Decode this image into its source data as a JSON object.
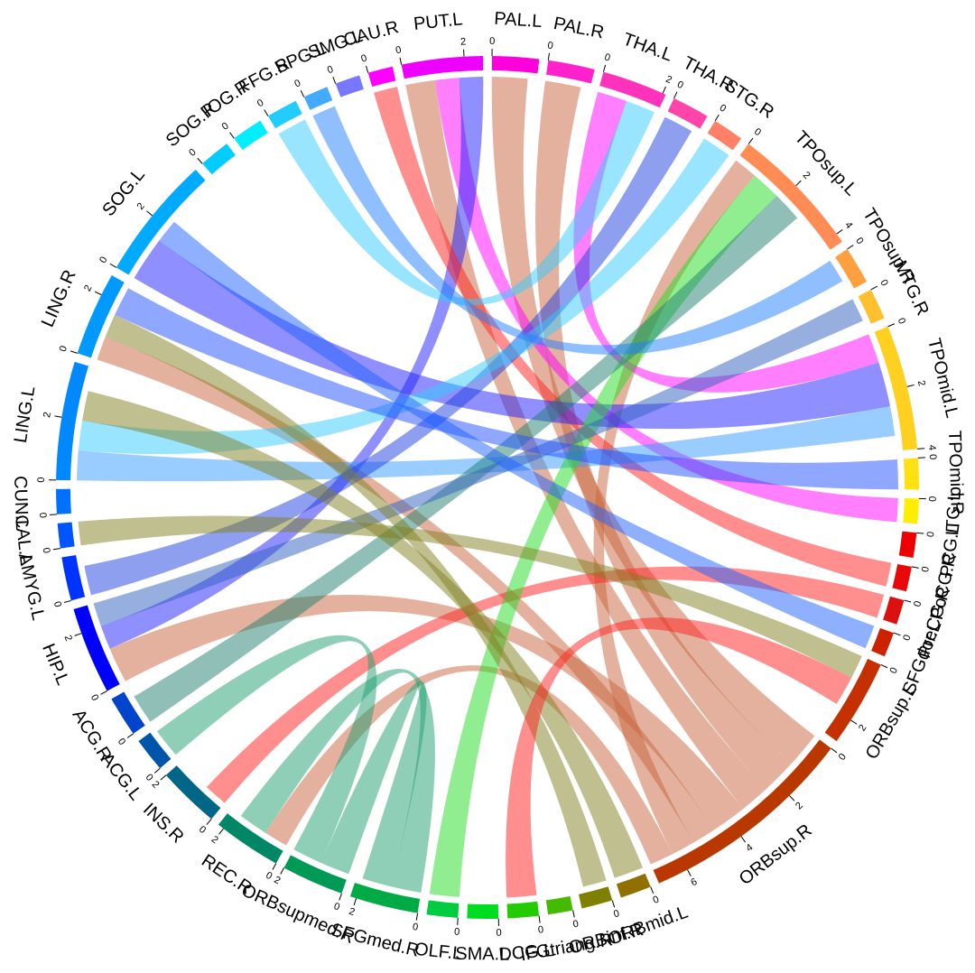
{
  "chart_data": {
    "type": "chord",
    "sectors": [
      {
        "name": "PAL.L",
        "value": 1.5,
        "color": "#ff00dd",
        "ticks": [
          0
        ]
      },
      {
        "name": "PAL.R",
        "value": 1.5,
        "color": "#ff22cc",
        "ticks": [
          0
        ]
      },
      {
        "name": "THA.L",
        "value": 2.1,
        "color": "#ff33bb",
        "ticks": [
          0,
          2
        ]
      },
      {
        "name": "THA.R",
        "value": 1.2,
        "color": "#ff44aa",
        "ticks": [
          0
        ]
      },
      {
        "name": "STG.R",
        "value": 1,
        "color": "#ff8066",
        "ticks": [
          0
        ]
      },
      {
        "name": "TPOsup.L",
        "value": 4.3,
        "color": "#ff8c55",
        "ticks": [
          0,
          2,
          4
        ]
      },
      {
        "name": "TPOsup.R",
        "value": 1.2,
        "color": "#ffa040",
        "ticks": [
          0
        ]
      },
      {
        "name": "MTG.R",
        "value": 1,
        "color": "#ffc030",
        "ticks": [
          0
        ]
      },
      {
        "name": "TPOmid.L",
        "value": 4,
        "color": "#ffd020",
        "ticks": [
          0,
          2,
          4
        ]
      },
      {
        "name": "TPOmid.R",
        "value": 1,
        "color": "#ffe010",
        "ticks": [
          0
        ]
      },
      {
        "name": "ITG.L",
        "value": 0.8,
        "color": "#ffee00",
        "ticks": [
          0
        ]
      },
      {
        "name": "PCG.L",
        "value": 0.8,
        "color": "#ee0000",
        "ticks": [
          0
        ]
      },
      {
        "name": "PoCG.R",
        "value": 0.8,
        "color": "#e80808",
        "ticks": [
          0
        ]
      },
      {
        "name": "PreCG.R",
        "value": 0.8,
        "color": "#dd1010",
        "ticks": [
          0
        ]
      },
      {
        "name": "SFGdor.L",
        "value": 0.8,
        "color": "#cc2200",
        "ticks": [
          0
        ]
      },
      {
        "name": "ORBsup.L",
        "value": 2.8,
        "color": "#c43000",
        "ticks": [
          0,
          2
        ]
      },
      {
        "name": "ORBsup.R",
        "value": 7,
        "color": "#b83800",
        "ticks": [
          0,
          2,
          4,
          6
        ]
      },
      {
        "name": "ORBmid.L",
        "value": 1,
        "color": "#907000",
        "ticks": [
          0
        ]
      },
      {
        "name": "ORBinf.R",
        "value": 1,
        "color": "#808000",
        "ticks": [
          0
        ]
      },
      {
        "name": "IFGtriang.R",
        "value": 0.8,
        "color": "#44bb00",
        "ticks": [
          0
        ]
      },
      {
        "name": "DCG.L",
        "value": 1,
        "color": "#22cc00",
        "ticks": [
          0
        ]
      },
      {
        "name": "SMA.L",
        "value": 1,
        "color": "#00dd20",
        "ticks": [
          0
        ]
      },
      {
        "name": "OLF.L",
        "value": 1,
        "color": "#00cc40",
        "ticks": [
          0
        ]
      },
      {
        "name": "SFGmed.R",
        "value": 2.2,
        "color": "#00aa44",
        "ticks": [
          0,
          2
        ]
      },
      {
        "name": "ORBsupmed.R",
        "value": 2,
        "color": "#009955",
        "ticks": [
          0,
          2
        ]
      },
      {
        "name": "REC.R",
        "value": 2.2,
        "color": "#008866",
        "ticks": [
          0,
          2
        ]
      },
      {
        "name": "INS.R",
        "value": 2,
        "color": "#006688",
        "ticks": [
          0,
          2
        ]
      },
      {
        "name": "ACG.L",
        "value": 1.1,
        "color": "#0055aa",
        "ticks": [
          0
        ]
      },
      {
        "name": "ACG.R",
        "value": 1.3,
        "color": "#0044cc",
        "ticks": [
          0
        ]
      },
      {
        "name": "HIP.L",
        "value": 2.8,
        "color": "#0000ff",
        "ticks": [
          0,
          2
        ]
      },
      {
        "name": "AMYG.L",
        "value": 1.4,
        "color": "#0033ff",
        "ticks": [
          0
        ]
      },
      {
        "name": "CAL.L",
        "value": 0.8,
        "color": "#0055ff",
        "ticks": [
          0
        ]
      },
      {
        "name": "CUN.L",
        "value": 0.8,
        "color": "#0070ff",
        "ticks": [
          0
        ]
      },
      {
        "name": "LING.L",
        "value": 3.8,
        "color": "#0088ff",
        "ticks": [
          0,
          2
        ]
      },
      {
        "name": "LING.R",
        "value": 2.7,
        "color": "#0099ff",
        "ticks": [
          0,
          2
        ]
      },
      {
        "name": "SOG.L",
        "value": 4,
        "color": "#00aaff",
        "ticks": [
          0,
          2
        ]
      },
      {
        "name": "SOG.R",
        "value": 1,
        "color": "#00ccff",
        "ticks": [
          0
        ]
      },
      {
        "name": "IOG.R",
        "value": 1,
        "color": "#00eeff",
        "ticks": [
          0
        ]
      },
      {
        "name": "FFG.R",
        "value": 1,
        "color": "#22ccff",
        "ticks": [
          0
        ]
      },
      {
        "name": "SPG.L",
        "value": 0.8,
        "color": "#44aaff",
        "ticks": [
          0
        ]
      },
      {
        "name": "SMG.L",
        "value": 0.8,
        "color": "#7777ff",
        "ticks": [
          0
        ]
      },
      {
        "name": "CAU.R",
        "value": 0.8,
        "color": "#ff00ff",
        "ticks": [
          0
        ]
      },
      {
        "name": "PUT.L",
        "value": 2.6,
        "color": "#ee00ff",
        "ticks": [
          0,
          2
        ]
      }
    ],
    "chords": [
      {
        "from": "ORBsup.R",
        "to": "PAL.L",
        "value": 1.2,
        "color": "#c8643c"
      },
      {
        "from": "ORBsup.R",
        "to": "PAL.R",
        "value": 1.2,
        "color": "#c8643c"
      },
      {
        "from": "ORBsup.R",
        "to": "PUT.L",
        "value": 1,
        "color": "#c8643c"
      },
      {
        "from": "ORBsup.R",
        "to": "HIP.L",
        "value": 1.2,
        "color": "#c8643c"
      },
      {
        "from": "ORBsup.R",
        "to": "LING.R",
        "value": 0.8,
        "color": "#c8643c"
      },
      {
        "from": "ORBsup.R",
        "to": "TPOsup.L",
        "value": 0.8,
        "color": "#c8643c"
      },
      {
        "from": "ORBsup.R",
        "to": "REC.R",
        "value": 0.8,
        "color": "#c8643c"
      },
      {
        "from": "THA.L",
        "to": "TPOmid.L",
        "value": 1,
        "color": "#ff00ff"
      },
      {
        "from": "PUT.L",
        "to": "ITG.L",
        "value": 0.8,
        "color": "#ff00ff"
      },
      {
        "from": "PUT.L",
        "to": "HIP.L",
        "value": 0.8,
        "color": "#2020ff"
      },
      {
        "from": "CAU.R",
        "to": "PoCG.R",
        "value": 0.8,
        "color": "#ff2020"
      },
      {
        "from": "INS.R",
        "to": "PreCG.R",
        "value": 0.8,
        "color": "#ff2020"
      },
      {
        "from": "SOG.L",
        "to": "TPOmid.L",
        "value": 1.5,
        "color": "#2020ff"
      },
      {
        "from": "LING.L",
        "to": "TPOmid.L",
        "value": 1,
        "color": "#3399ff"
      },
      {
        "from": "THA.R",
        "to": "AMYG.L",
        "value": 1,
        "color": "#2040e0"
      },
      {
        "from": "STG.R",
        "to": "LING.L",
        "value": 1,
        "color": "#33ccff"
      },
      {
        "from": "FFG.R",
        "to": "THA.L",
        "value": 1,
        "color": "#33ccff"
      },
      {
        "from": "OLF.L",
        "to": "TPOsup.L",
        "value": 1,
        "color": "#22dd22"
      },
      {
        "from": "SFGmed.R",
        "to": "REC.R",
        "value": 1,
        "color": "#20a070"
      },
      {
        "from": "ORBsupmed.R",
        "to": "SFGmed.R",
        "value": 1,
        "color": "#20a070"
      },
      {
        "from": "ACG.L",
        "to": "ORBsupmed.R",
        "value": 1,
        "color": "#20a070"
      },
      {
        "from": "ACG.R",
        "to": "TPOsup.L",
        "value": 1,
        "color": "#208070"
      },
      {
        "from": "HIP.L",
        "to": "MTG.R",
        "value": 0.8,
        "color": "#3060c0"
      },
      {
        "from": "LING.L",
        "to": "ORBmid.L",
        "value": 1,
        "color": "#808020"
      },
      {
        "from": "LING.R",
        "to": "ORBinf.R",
        "value": 0.8,
        "color": "#808020"
      },
      {
        "from": "CAL.L",
        "to": "ORBsup.L",
        "value": 0.8,
        "color": "#808020"
      },
      {
        "from": "DCG.L",
        "to": "ORBsup.L",
        "value": 1,
        "color": "#ff2020"
      },
      {
        "from": "LING.R",
        "to": "TPOmid.R",
        "value": 1,
        "color": "#2050ff"
      },
      {
        "from": "SOG.L",
        "to": "SFGdor.L",
        "value": 0.8,
        "color": "#2060ff"
      },
      {
        "from": "SPG.L",
        "to": "TPOsup.R",
        "value": 0.8,
        "color": "#2080ff"
      }
    ]
  }
}
